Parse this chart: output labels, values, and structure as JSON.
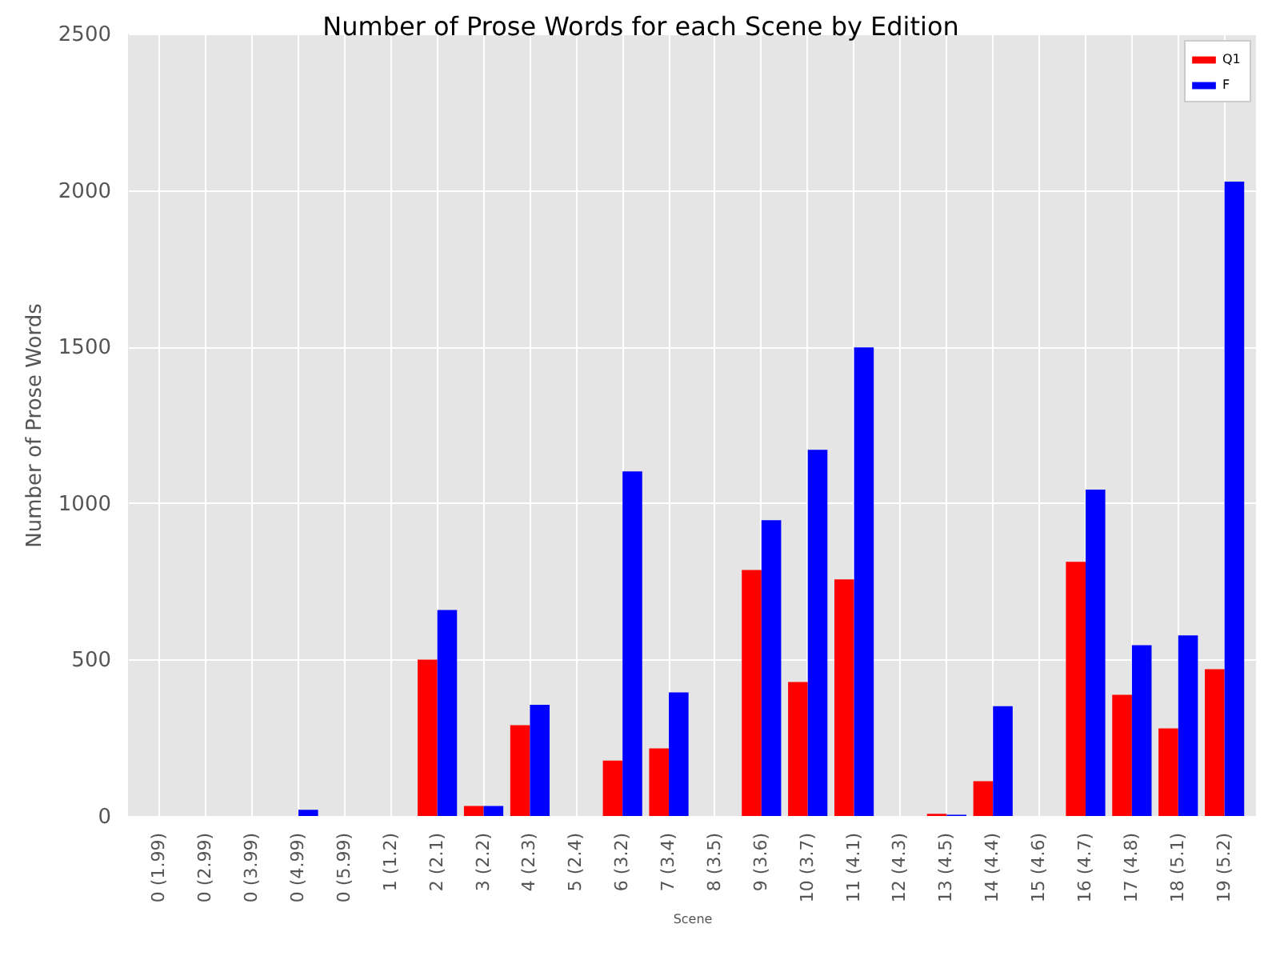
{
  "chart_data": {
    "type": "bar",
    "title": "Number of Prose Words for each Scene by Edition",
    "xlabel": "Scene",
    "ylabel": "Number of Prose Words",
    "categories": [
      "0 (1.99)",
      "0 (2.99)",
      "0 (3.99)",
      "0 (4.99)",
      "0 (5.99)",
      "1 (1.2)",
      "2 (2.1)",
      "3 (2.2)",
      "4 (2.3)",
      "5 (2.4)",
      "6 (3.2)",
      "7 (3.4)",
      "8 (3.5)",
      "9 (3.6)",
      "10 (3.7)",
      "11 (4.1)",
      "12 (4.3)",
      "13 (4.5)",
      "14 (4.4)",
      "15 (4.6)",
      "16 (4.7)",
      "17 (4.8)",
      "18 (5.1)",
      "19 (5.2)"
    ],
    "series": [
      {
        "name": "Q1",
        "color": "#ff0000",
        "values": [
          0,
          0,
          0,
          0,
          0,
          0,
          500,
          32,
          290,
          0,
          177,
          216,
          0,
          786,
          428,
          756,
          0,
          7,
          111,
          0,
          812,
          387,
          280,
          469
        ]
      },
      {
        "name": "F",
        "color": "#0000ff",
        "values": [
          0,
          0,
          0,
          20,
          0,
          0,
          658,
          32,
          355,
          0,
          1101,
          395,
          0,
          945,
          1170,
          1497,
          0,
          4,
          351,
          0,
          1043,
          546,
          577,
          2027
        ]
      }
    ],
    "ylim": [
      0,
      2500
    ],
    "yticks": [
      0,
      500,
      1000,
      1500,
      2000,
      2500
    ],
    "grid": true,
    "legend": "top right"
  }
}
